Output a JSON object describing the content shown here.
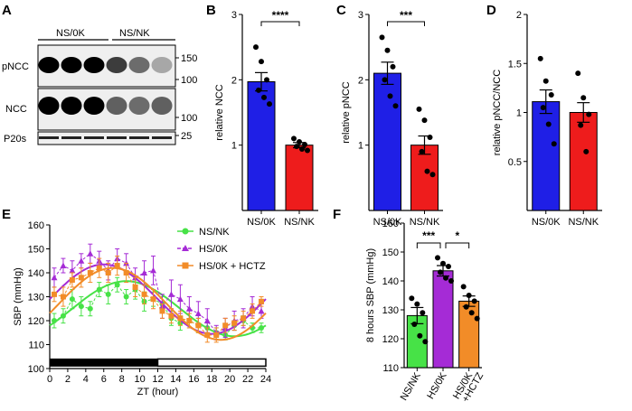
{
  "panels": {
    "A": "A",
    "B": "B",
    "C": "C",
    "D": "D",
    "E": "E",
    "F": "F"
  },
  "colors": {
    "ns_0k": "#1f1fe6",
    "ns_nk": "#ee1c1c",
    "ns_nk_green": "#47e247",
    "hs_0k": "#a52bd6",
    "hs_0k_hctz": "#f28c28"
  },
  "blot": {
    "groups": [
      "NS/0K",
      "NS/NK"
    ],
    "rows": [
      "pNCC",
      "NCC",
      "P20s"
    ],
    "markers": {
      "pncc": [
        "150",
        "100"
      ],
      "ncc": [
        "100"
      ],
      "p20s": [
        "25"
      ]
    }
  },
  "chart_data": [
    {
      "panel": "B",
      "type": "bar",
      "categories": [
        "NS/0K",
        "NS/NK"
      ],
      "values": [
        1.97,
        1.0
      ],
      "errors": [
        0.14,
        0.04
      ],
      "points": [
        [
          2.5,
          2.28,
          2.0,
          1.84,
          1.73,
          1.63
        ],
        [
          1.1,
          1.05,
          1.01,
          0.98,
          0.94,
          0.92
        ]
      ],
      "ylabel": "relative NCC",
      "ylim": [
        0,
        3
      ],
      "yticks": [
        1,
        2,
        3
      ],
      "significance": "****"
    },
    {
      "panel": "C",
      "type": "bar",
      "categories": [
        "NS/0K",
        "NS/NK"
      ],
      "values": [
        2.1,
        1.0
      ],
      "errors": [
        0.17,
        0.14
      ],
      "points": [
        [
          2.65,
          2.45,
          2.2,
          2.0,
          1.75,
          1.6
        ],
        [
          1.55,
          1.38,
          1.12,
          0.9,
          0.6,
          0.55
        ]
      ],
      "ylabel": "relative pNCC",
      "ylim": [
        0,
        3
      ],
      "yticks": [
        1,
        2,
        3
      ],
      "significance": "***"
    },
    {
      "panel": "D",
      "type": "bar",
      "categories": [
        "NS/0K",
        "NS/NK"
      ],
      "values": [
        1.11,
        1.0
      ],
      "errors": [
        0.12,
        0.1
      ],
      "points": [
        [
          1.55,
          1.32,
          1.18,
          1.05,
          0.88,
          0.68
        ],
        [
          1.4,
          1.15,
          0.98,
          0.87,
          0.6
        ]
      ],
      "ylabel": "relative pNCC/NCC",
      "ylim": [
        0,
        2
      ],
      "yticks": [
        0.5,
        1.0,
        1.5,
        2.0
      ]
    },
    {
      "panel": "E",
      "type": "line",
      "xlabel": "ZT (hour)",
      "ylabel": "SBP (mmHg)",
      "xlim": [
        0,
        24
      ],
      "ylim": [
        100,
        160
      ],
      "xticks": [
        0,
        2,
        4,
        6,
        8,
        10,
        12,
        14,
        16,
        18,
        20,
        22,
        24
      ],
      "yticks": [
        100,
        110,
        120,
        130,
        140,
        150,
        160
      ],
      "x": [
        0.5,
        1.5,
        2.5,
        3.5,
        4.5,
        5.5,
        6.5,
        7.5,
        8.5,
        9.5,
        10.5,
        11.5,
        12.5,
        13.5,
        14.5,
        15.5,
        16.5,
        17.5,
        18.5,
        19.5,
        20.5,
        21.5,
        22.5,
        23.5
      ],
      "series": [
        {
          "name": "NS/NK",
          "key": "ns_nk_green",
          "marker": "circle",
          "values": [
            120,
            122,
            129,
            126,
            125,
            133,
            131,
            135,
            130,
            133,
            128,
            129,
            127,
            121,
            119,
            120,
            118,
            117,
            115,
            114,
            118,
            120,
            117,
            117
          ],
          "errors": [
            3,
            3,
            4,
            4,
            3,
            3,
            4,
            3,
            3,
            4,
            4,
            3,
            3,
            3,
            3,
            3,
            3,
            2,
            2,
            2,
            2,
            2,
            2,
            2
          ],
          "fit": {
            "mean": 125,
            "amp": 11.5,
            "peak": 8.5
          }
        },
        {
          "name": "HS/0K",
          "key": "hs_0k",
          "marker": "triangle",
          "values": [
            138,
            143,
            141,
            145,
            148,
            145,
            141,
            146,
            144,
            138,
            140,
            141,
            126,
            131,
            129,
            125,
            123,
            120,
            115,
            117,
            120,
            121,
            126,
            124
          ],
          "errors": [
            4,
            3,
            4,
            3,
            4,
            4,
            4,
            4,
            4,
            4,
            5,
            6,
            5,
            6,
            6,
            5,
            5,
            5,
            3,
            4,
            4,
            4,
            4,
            3
          ],
          "fit": {
            "mean": 129,
            "amp": 14.5,
            "peak": 6.0
          }
        },
        {
          "name": "HS/0K + HCTZ",
          "key": "hs_0k_hctz",
          "marker": "square",
          "values": [
            131,
            130,
            137,
            138,
            140,
            142,
            140,
            143,
            140,
            134,
            131,
            129,
            124,
            122,
            121,
            120,
            118,
            114,
            114,
            118,
            119,
            121,
            124,
            128
          ],
          "errors": [
            3,
            4,
            3,
            4,
            4,
            4,
            4,
            4,
            4,
            4,
            4,
            4,
            3,
            3,
            3,
            3,
            3,
            3,
            3,
            3,
            3,
            3,
            3,
            2
          ],
          "fit": {
            "mean": 127,
            "amp": 15.0,
            "peak": 7.0
          }
        }
      ],
      "legend_placement": "top-right"
    },
    {
      "panel": "F",
      "type": "bar",
      "categories": [
        "NS/NK",
        "HS/0K",
        "HS/0K\n+HCTZ"
      ],
      "values": [
        128,
        143.5,
        133
      ],
      "errors": [
        2.8,
        1.8,
        1.8
      ],
      "points": [
        [
          134,
          132,
          129,
          125,
          121,
          119
        ],
        [
          148,
          146,
          145,
          143,
          141,
          140
        ],
        [
          138,
          135,
          133,
          131,
          129,
          127
        ]
      ],
      "ylabel": "8 hours SBP (mmHg)",
      "ylim": [
        110,
        160
      ],
      "yticks": [
        110,
        120,
        130,
        140,
        150,
        160
      ],
      "brackets": [
        {
          "a": 0,
          "b": 1,
          "label": "***"
        },
        {
          "a": 1,
          "b": 2,
          "label": "*"
        }
      ]
    }
  ]
}
